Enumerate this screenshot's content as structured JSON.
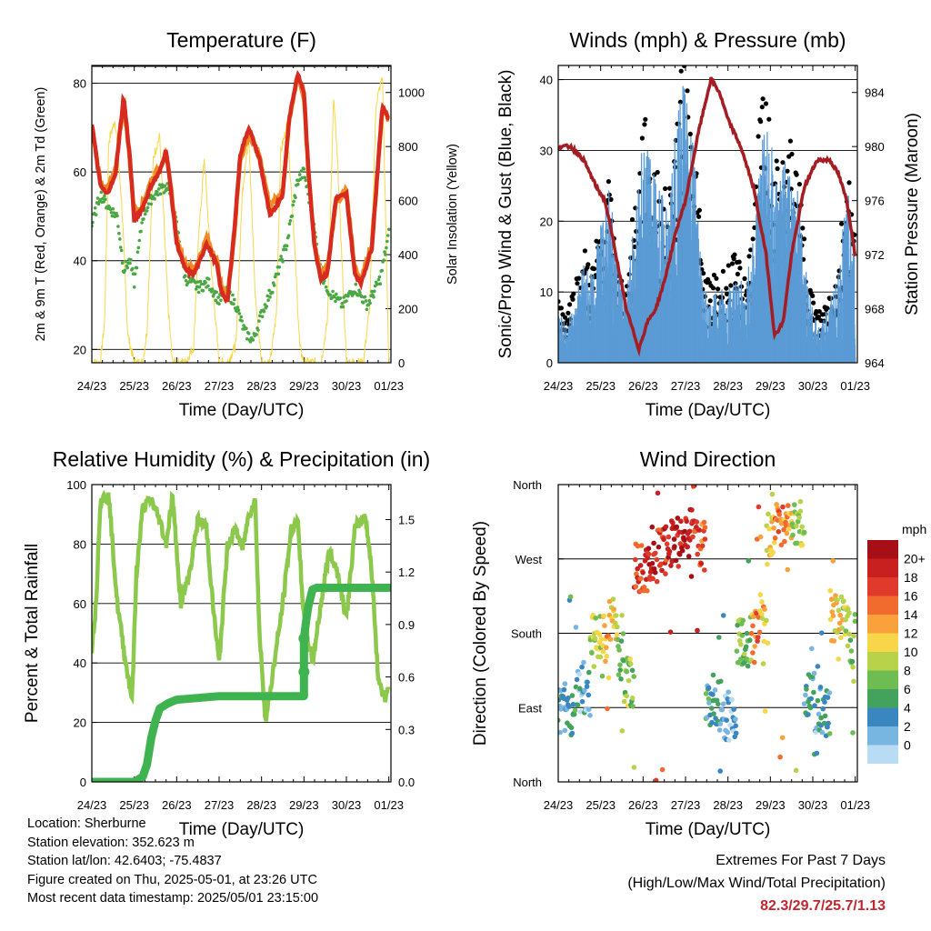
{
  "colors": {
    "temp_2m": "#d62b1e",
    "temp_9m": "#f08a24",
    "dewpoint": "#4aa842",
    "solar": "#f7d74a",
    "wind": "#5b9bd5",
    "gust": "#000000",
    "pressure": "#a31d22",
    "rh": "#8cc84b",
    "precip": "#3fb34f",
    "extremes_text": "#c1272d"
  },
  "info": {
    "location": "Location: Sherburne",
    "elevation": "Station elevation: 352.623 m",
    "latlon": "Station lat/lon: 42.6403; -75.4837",
    "created": "Figure created on Thu, 2025-05-01, at 23:26 UTC",
    "latest": "Most recent data timestamp: 2025/05/01 23:15:00"
  },
  "extremes": {
    "title": "Extremes For Past 7 Days",
    "subtitle": "(High/Low/Max Wind/Total Precipitation)",
    "values": "82.3/29.7/25.7/1.13"
  },
  "chart_data": [
    {
      "type": "line",
      "title": "Temperature (F)",
      "xlabel": "Time (Day/UTC)",
      "ylabel": "2m & 9m T (Red, Orange) & 2m Td (Green)",
      "ylabel_right": "Solar Insolation (Yellow)",
      "x_ticks": [
        "24/23",
        "25/23",
        "26/23",
        "27/23",
        "28/23",
        "29/23",
        "30/23",
        "01/23"
      ],
      "xlim": [
        0,
        7.05
      ],
      "ylim": [
        17,
        84
      ],
      "y_ticks": [
        "20",
        "40",
        "60",
        "80"
      ],
      "y2lim": [
        0,
        1100
      ],
      "y2_ticks": [
        "0",
        "200",
        "400",
        "600",
        "800",
        "1000"
      ],
      "grid": "horizontal",
      "series": [
        {
          "key": "temp_9m",
          "axis": "left",
          "x": [
            0,
            0.2,
            0.35,
            0.55,
            0.75,
            0.9,
            1,
            1.2,
            1.4,
            1.6,
            1.75,
            1.85,
            2,
            2.2,
            2.4,
            2.55,
            2.7,
            2.95,
            3.05,
            3.2,
            3.35,
            3.5,
            3.7,
            3.95,
            4.2,
            4.5,
            4.65,
            4.85,
            5,
            5.1,
            5.25,
            5.4,
            5.55,
            5.75,
            6,
            6.2,
            6.35,
            6.6,
            6.85,
            7.0
          ],
          "y": [
            70,
            58,
            56,
            60,
            76,
            62,
            50,
            53,
            58,
            61,
            64,
            58,
            45,
            39,
            38,
            41,
            45,
            40,
            34,
            32,
            45,
            63,
            68,
            64,
            52,
            56,
            71,
            82,
            77,
            60,
            44,
            37,
            38,
            53,
            56,
            38,
            36,
            44,
            74,
            72
          ]
        },
        {
          "key": "temp_2m",
          "axis": "left",
          "x": [
            0,
            0.2,
            0.35,
            0.55,
            0.75,
            0.9,
            1,
            1.2,
            1.4,
            1.6,
            1.75,
            1.85,
            2,
            2.2,
            2.4,
            2.55,
            2.7,
            2.95,
            3.05,
            3.2,
            3.35,
            3.5,
            3.7,
            3.95,
            4.2,
            4.5,
            4.65,
            4.85,
            5,
            5.1,
            5.25,
            5.4,
            5.55,
            5.75,
            6,
            6.2,
            6.35,
            6.6,
            6.85,
            7.0
          ],
          "y": [
            71,
            57,
            55,
            59,
            77,
            63,
            49,
            52,
            57,
            60,
            65,
            57,
            44,
            38,
            37,
            40,
            44,
            39,
            33,
            31,
            46,
            64,
            70,
            63,
            50,
            55,
            72,
            82,
            78,
            61,
            43,
            36,
            37,
            54,
            55,
            37,
            35,
            43,
            75,
            72
          ]
        },
        {
          "key": "dewpoint",
          "axis": "left",
          "x": [
            0,
            0.2,
            0.4,
            0.6,
            0.75,
            0.9,
            1,
            1.2,
            1.4,
            1.6,
            1.8,
            2,
            2.2,
            2.5,
            2.75,
            3,
            3.2,
            3.4,
            3.6,
            3.8,
            4,
            4.3,
            4.6,
            4.85,
            5,
            5.2,
            5.4,
            5.6,
            5.9,
            6.2,
            6.5,
            6.8,
            7.0
          ],
          "y": [
            48,
            55,
            52,
            50,
            38,
            40,
            35,
            50,
            54,
            56,
            57,
            48,
            36,
            34,
            35,
            31,
            33,
            30,
            24,
            22,
            28,
            35,
            44,
            58,
            60,
            50,
            37,
            33,
            30,
            34,
            30,
            36,
            46
          ]
        },
        {
          "key": "solar",
          "axis": "right",
          "x": [
            0,
            0.2,
            0.3,
            0.4,
            0.55,
            0.7,
            0.85,
            1.0,
            1.2,
            1.3,
            1.45,
            1.6,
            1.8,
            1.9,
            2.0,
            2.2,
            2.4,
            2.5,
            2.65,
            2.8,
            3.0,
            3.2,
            3.4,
            3.55,
            3.7,
            3.85,
            4.0,
            4.2,
            4.35,
            4.45,
            4.6,
            4.75,
            4.9,
            5.0,
            5.2,
            5.4,
            5.55,
            5.7,
            5.8,
            6.0,
            6.2,
            6.4,
            6.55,
            6.7,
            6.85,
            7.0
          ],
          "y": [
            0,
            0,
            150,
            820,
            900,
            600,
            100,
            0,
            0,
            120,
            760,
            840,
            200,
            0,
            0,
            0,
            60,
            420,
            760,
            380,
            0,
            0,
            70,
            640,
            840,
            250,
            0,
            0,
            180,
            780,
            880,
            520,
            60,
            0,
            0,
            0,
            150,
            980,
            720,
            0,
            0,
            0,
            210,
            960,
            1060,
            0
          ]
        }
      ]
    },
    {
      "type": "scatter",
      "title": "Winds (mph) & Pressure (mb)",
      "xlabel": "Time (Day/UTC)",
      "ylabel": "Sonic/Prop Wind & Gust (Blue, Black)",
      "ylabel_right": "Station Pressure (Maroon)",
      "x_ticks": [
        "24/23",
        "25/23",
        "26/23",
        "27/23",
        "28/23",
        "29/23",
        "30/23",
        "01/23"
      ],
      "xlim": [
        0,
        7.05
      ],
      "ylim": [
        0,
        42
      ],
      "y_ticks": [
        "0",
        "10",
        "20",
        "30",
        "40"
      ],
      "y2lim": [
        964,
        986
      ],
      "y2_ticks": [
        "964",
        "968",
        "972",
        "976",
        "980",
        "984"
      ],
      "grid": "horizontal",
      "series": [
        {
          "key": "gust",
          "axis": "left",
          "x": [
            0,
            0.2,
            0.4,
            0.6,
            0.8,
            1.0,
            1.2,
            1.4,
            1.6,
            1.8,
            2.0,
            2.2,
            2.4,
            2.6,
            2.8,
            3.0,
            3.2,
            3.4,
            3.6,
            3.8,
            4.0,
            4.2,
            4.4,
            4.6,
            4.8,
            5.0,
            5.2,
            5.4,
            5.6,
            5.8,
            6.0,
            6.2,
            6.4,
            6.6,
            6.8,
            7.0
          ],
          "y": [
            8,
            7,
            10,
            14,
            12,
            18,
            22,
            12,
            9,
            20,
            30,
            26,
            22,
            20,
            33,
            36,
            30,
            12,
            10,
            11,
            12,
            13,
            11,
            18,
            33,
            30,
            22,
            28,
            25,
            16,
            8,
            6,
            10,
            12,
            26,
            16
          ]
        },
        {
          "key": "wind",
          "axis": "left",
          "x": [
            0,
            0.2,
            0.4,
            0.6,
            0.8,
            1.0,
            1.2,
            1.4,
            1.6,
            1.8,
            2.0,
            2.2,
            2.4,
            2.6,
            2.8,
            3.0,
            3.2,
            3.4,
            3.6,
            3.8,
            4.0,
            4.2,
            4.4,
            4.6,
            4.8,
            5.0,
            5.2,
            5.4,
            5.6,
            5.8,
            6.0,
            6.2,
            6.4,
            6.6,
            6.8,
            7.0
          ],
          "y": [
            4,
            3,
            5,
            8,
            7,
            11,
            14,
            8,
            5,
            12,
            18,
            16,
            14,
            12,
            20,
            24,
            18,
            6,
            5,
            6,
            6,
            7,
            6,
            10,
            20,
            18,
            14,
            17,
            15,
            9,
            4,
            3,
            5,
            7,
            14,
            10
          ]
        },
        {
          "key": "pressure",
          "axis": "right",
          "x": [
            0,
            0.3,
            0.6,
            0.9,
            1.1,
            1.3,
            1.6,
            1.9,
            2.1,
            2.3,
            2.5,
            2.8,
            3.0,
            3.3,
            3.6,
            3.8,
            4.0,
            4.3,
            4.6,
            4.9,
            5.1,
            5.3,
            5.5,
            5.8,
            6.1,
            6.4,
            6.6,
            6.8,
            6.9,
            7.0
          ],
          "y": [
            980,
            980,
            979,
            977,
            976,
            973,
            968,
            965,
            967,
            968,
            970,
            974,
            976,
            981,
            985,
            984,
            982,
            980,
            977,
            972,
            966,
            967,
            972,
            977,
            979,
            979,
            978,
            976,
            974,
            972
          ]
        }
      ]
    },
    {
      "type": "line",
      "title": "Relative Humidity (%) & Precipitation (in)",
      "xlabel": "Time (Day/UTC)",
      "ylabel": "Percent & Total Rainfall",
      "x_ticks": [
        "24/23",
        "25/23",
        "26/23",
        "27/23",
        "28/23",
        "29/23",
        "30/23",
        "01/23"
      ],
      "xlim": [
        0,
        7.05
      ],
      "ylim": [
        0,
        100
      ],
      "y_ticks": [
        "0",
        "20",
        "40",
        "60",
        "80",
        "100"
      ],
      "y2lim": [
        0,
        1.7
      ],
      "y2_ticks": [
        "0.0",
        "0.3",
        "0.6",
        "0.9",
        "1.2",
        "1.5"
      ],
      "grid": "horizontal",
      "series": [
        {
          "key": "rh",
          "axis": "left",
          "x": [
            0,
            0.1,
            0.2,
            0.4,
            0.6,
            0.8,
            0.95,
            1.05,
            1.2,
            1.4,
            1.6,
            1.75,
            1.9,
            2.1,
            2.3,
            2.5,
            2.7,
            2.85,
            3.0,
            3.2,
            3.4,
            3.55,
            3.7,
            3.85,
            3.95,
            4.1,
            4.3,
            4.5,
            4.7,
            4.85,
            5.0,
            5.2,
            5.4,
            5.6,
            5.8,
            6.0,
            6.2,
            6.45,
            6.6,
            6.75,
            6.9,
            7.0
          ],
          "y": [
            45,
            60,
            95,
            96,
            60,
            40,
            28,
            70,
            92,
            95,
            88,
            80,
            96,
            60,
            70,
            88,
            86,
            60,
            40,
            80,
            85,
            78,
            90,
            95,
            50,
            20,
            40,
            60,
            85,
            88,
            55,
            40,
            60,
            78,
            70,
            55,
            85,
            90,
            70,
            35,
            28,
            33
          ]
        },
        {
          "key": "precip",
          "axis": "right",
          "x": [
            0,
            0.5,
            1.0,
            1.2,
            1.3,
            1.4,
            1.5,
            1.6,
            1.8,
            2.0,
            2.5,
            3.0,
            3.5,
            4.0,
            4.5,
            4.8,
            5.0,
            5.0,
            5.05,
            5.1,
            5.2,
            5.3,
            5.5,
            6.0,
            6.5,
            7.0
          ],
          "y": [
            0,
            0,
            0,
            0.03,
            0.1,
            0.25,
            0.35,
            0.42,
            0.45,
            0.47,
            0.48,
            0.49,
            0.49,
            0.49,
            0.49,
            0.49,
            0.49,
            0.82,
            0.92,
            1.0,
            1.1,
            1.11,
            1.11,
            1.11,
            1.11,
            1.11
          ]
        }
      ]
    },
    {
      "type": "scatter",
      "title": "Wind Direction",
      "xlabel": "Time (Day/UTC)",
      "ylabel": "Direction (Colored By Speed)",
      "x_ticks": [
        "24/23",
        "25/23",
        "26/23",
        "27/23",
        "28/23",
        "29/23",
        "30/23",
        "01/23"
      ],
      "xlim": [
        0,
        7.05
      ],
      "ylim": [
        0,
        360
      ],
      "y_tick_labels": [
        "North",
        "East",
        "South",
        "West",
        "North"
      ],
      "grid": "horizontal",
      "legend": {
        "title": "mph",
        "labels": [
          "20+",
          "18",
          "16",
          "14",
          "12",
          "10",
          "8",
          "6",
          "4",
          "2",
          "0"
        ],
        "colors": [
          "#a50f15",
          "#c81f1f",
          "#e03a2b",
          "#f26b2e",
          "#f9a23b",
          "#f8d64a",
          "#b8d24a",
          "#6ebd53",
          "#43a35c",
          "#3a86c1",
          "#77b6e0",
          "#b8dcf3"
        ]
      },
      "series": [
        {
          "name": "",
          "direction": [
            90,
            85,
            110,
            180,
            175,
            200,
            150,
            120,
            260,
            270,
            280,
            290,
            295,
            300,
            290,
            285,
            90,
            100,
            80,
            170,
            180,
            190,
            200,
            300,
            310,
            320,
            315,
            110,
            90,
            85,
            200,
            190,
            180,
            150
          ],
          "time": [
            0.1,
            0.3,
            0.5,
            1.0,
            1.1,
            1.3,
            1.5,
            1.6,
            2.0,
            2.2,
            2.5,
            2.7,
            2.9,
            3.1,
            3.3,
            3.45,
            3.5,
            3.7,
            3.9,
            4.5,
            4.6,
            4.7,
            4.8,
            5.0,
            5.2,
            5.4,
            5.6,
            6.0,
            6.1,
            6.2,
            6.6,
            6.8,
            7.0,
            6.95
          ],
          "speed": [
            4,
            6,
            3,
            10,
            14,
            12,
            8,
            9,
            18,
            20,
            19,
            22,
            21,
            20,
            18,
            17,
            5,
            4,
            3,
            8,
            14,
            16,
            13,
            12,
            16,
            14,
            10,
            4,
            3,
            5,
            12,
            9,
            10,
            8
          ]
        }
      ]
    }
  ]
}
